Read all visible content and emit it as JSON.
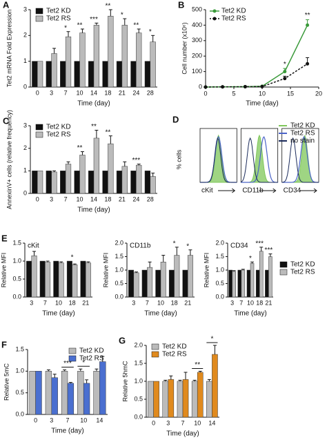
{
  "chart_data": [
    {
      "type": "bar",
      "panel": "A",
      "ylabel": "Tet2 mRNA Fold Expression",
      "xlabel": "Time (day)",
      "categories": [
        "0",
        "3",
        "7",
        "10",
        "14",
        "18",
        "21",
        "24",
        "28"
      ],
      "series": [
        {
          "name": "Tet2 KD",
          "color": "#111111",
          "values": [
            1,
            1,
            1,
            1,
            1,
            1,
            1,
            1,
            1
          ],
          "errors": [
            0,
            0,
            0,
            0,
            0,
            0,
            0,
            0,
            0
          ]
        },
        {
          "name": "Tet2 RS",
          "color": "#bbbbbb",
          "values": [
            1,
            1.3,
            1.95,
            2.1,
            2.4,
            2.75,
            2.4,
            2.1,
            1.75
          ],
          "errors": [
            0,
            0.2,
            0.2,
            0.15,
            0.08,
            0.25,
            0.25,
            0.15,
            0.25
          ]
        }
      ],
      "significance": [
        null,
        null,
        "*",
        "**",
        "***",
        "**",
        "*",
        "**",
        "*"
      ],
      "ylim": [
        0,
        3
      ],
      "yticks": [
        0,
        1,
        2,
        3
      ],
      "legend": "upper left"
    },
    {
      "type": "line",
      "panel": "B",
      "ylabel": "Cell number (x10⁶)",
      "xlabel": "Time (day)",
      "x": [
        0,
        3,
        7,
        10,
        14,
        18
      ],
      "series": [
        {
          "name": "Tet2 KD",
          "color": "#3a9a3a",
          "dash": false,
          "values": [
            0,
            1,
            2,
            5,
            100,
            400
          ],
          "errors": [
            0,
            1,
            2,
            3,
            20,
            35
          ]
        },
        {
          "name": "Tet2 RS",
          "color": "#111111",
          "dash": true,
          "values": [
            0,
            1,
            2,
            3,
            55,
            150
          ],
          "errors": [
            0,
            1,
            1,
            2,
            15,
            40
          ]
        }
      ],
      "significance": [
        null,
        null,
        null,
        null,
        "*",
        "**"
      ],
      "xlim": [
        0,
        20
      ],
      "xticks": [
        0,
        5,
        10,
        15,
        20
      ],
      "ylim": [
        0,
        500
      ],
      "yticks": [
        0,
        100,
        200,
        300,
        400,
        500
      ],
      "legend": "upper left"
    },
    {
      "type": "bar",
      "panel": "C",
      "ylabel": "AnnexinV+ cells (relative frequency)",
      "xlabel": "Time (day)",
      "categories": [
        "0",
        "3",
        "7",
        "10",
        "14",
        "18",
        "21",
        "24",
        "28"
      ],
      "series": [
        {
          "name": "Tet2 KD",
          "color": "#111111",
          "values": [
            1,
            1,
            1,
            1,
            1,
            1,
            1,
            1,
            1
          ],
          "errors": [
            0,
            0,
            0,
            0,
            0,
            0,
            0,
            0,
            0
          ]
        },
        {
          "name": "Tet2 RS",
          "color": "#bbbbbb",
          "values": [
            1,
            0.95,
            1.3,
            1.7,
            2.45,
            2.2,
            1.2,
            1.25,
            0.75
          ],
          "errors": [
            0,
            0.05,
            0.1,
            0.15,
            0.35,
            0.35,
            0.2,
            0.05,
            0.15
          ]
        }
      ],
      "significance": [
        null,
        null,
        null,
        "**",
        "**",
        "**",
        null,
        "***",
        null
      ],
      "ylim": [
        0,
        3
      ],
      "yticks": [
        0,
        1,
        2,
        3
      ],
      "legend": "upper left"
    },
    {
      "type": "flow",
      "panel": "D",
      "ylabel": "% cells",
      "categories": [
        "cKit",
        "CD11b",
        "CD34"
      ],
      "series": [
        {
          "name": "Tet2 KD",
          "color": "#7fc75a"
        },
        {
          "name": "Tet2 RS",
          "color": "#4a63c8"
        },
        {
          "name": "no stain",
          "color": "#1a2a5a"
        }
      ],
      "legend": "upper right"
    },
    {
      "type": "bar",
      "panel": "E",
      "title": "cKit",
      "ylabel": "Relative MFI",
      "xlabel": "Time (day)",
      "categories": [
        "3",
        "7",
        "10",
        "18",
        "21"
      ],
      "series": [
        {
          "name": "Tet2 KD",
          "color": "#111111",
          "values": [
            1,
            1,
            1,
            1,
            1
          ],
          "errors": [
            0,
            0,
            0,
            0,
            0
          ]
        },
        {
          "name": "Tet2 RS",
          "color": "#bbbbbb",
          "values": [
            1.15,
            0.97,
            0.95,
            0.9,
            0.95
          ],
          "errors": [
            0.12,
            0.03,
            0.03,
            0.02,
            0.03
          ]
        }
      ],
      "significance": [
        null,
        null,
        null,
        "*",
        null
      ],
      "ylim": [
        0,
        1.5
      ],
      "yticks": [
        {
          "value": 0,
          "label": "0.0"
        },
        0.5,
        {
          "value": 1,
          "label": "1.0"
        },
        1.5
      ]
    },
    {
      "type": "bar",
      "title": "CD11b",
      "ylabel": "Relative MFI",
      "xlabel": "Time (day)",
      "categories": [
        "3",
        "7",
        "10",
        "18",
        "21"
      ],
      "series": [
        {
          "name": "Tet2 KD",
          "color": "#111111",
          "values": [
            1,
            1,
            1,
            1,
            1
          ],
          "errors": [
            0,
            0,
            0,
            0,
            0
          ]
        },
        {
          "name": "Tet2 RS",
          "color": "#bbbbbb",
          "values": [
            0.9,
            1.1,
            1.3,
            1.55,
            1.55
          ],
          "errors": [
            0.03,
            0.2,
            0.25,
            0.3,
            0.2
          ]
        }
      ],
      "significance": [
        null,
        null,
        null,
        "*",
        "*"
      ],
      "ylim": [
        0,
        2
      ],
      "yticks": [
        {
          "value": 0,
          "label": "0.0"
        },
        0.5,
        {
          "value": 1,
          "label": "1.0"
        },
        1.5,
        {
          "value": 2,
          "label": "2.0"
        }
      ]
    },
    {
      "type": "bar",
      "title": "CD34",
      "ylabel": "Relative MFI",
      "xlabel": "Time (day)",
      "categories": [
        "3",
        "7",
        "10",
        "18",
        "21"
      ],
      "series": [
        {
          "name": "Tet2 KD",
          "color": "#111111",
          "values": [
            1,
            1,
            1,
            1,
            1
          ],
          "errors": [
            0,
            0,
            0,
            0,
            0
          ]
        },
        {
          "name": "Tet2 RS",
          "color": "#bbbbbb",
          "values": [
            0.95,
            1.0,
            1.25,
            1.7,
            1.5
          ],
          "errors": [
            0.03,
            0.03,
            0.05,
            0.15,
            0.1
          ]
        }
      ],
      "significance": [
        null,
        null,
        "*",
        "***",
        "***"
      ],
      "ylim": [
        0,
        2
      ],
      "yticks": [
        {
          "value": 0,
          "label": "0.0"
        },
        0.5,
        {
          "value": 1,
          "label": "1.0"
        },
        1.5,
        {
          "value": 2,
          "label": "2.0"
        }
      ],
      "legend": "right"
    },
    {
      "type": "bar",
      "panel": "F",
      "ylabel": "Relative 5mC",
      "xlabel": "Time (day)",
      "categories": [
        "0",
        "3",
        "7",
        "10",
        "14"
      ],
      "series": [
        {
          "name": "Tet2 KD",
          "color": "#bbbbbb",
          "values": [
            1,
            1,
            1,
            1,
            1
          ],
          "errors": [
            0,
            0.03,
            0.03,
            0.05,
            0.05
          ]
        },
        {
          "name": "Tet2 RS",
          "color": "#4a6fd0",
          "values": [
            1,
            0.85,
            0.72,
            0.72,
            1.22
          ],
          "errors": [
            0,
            0.08,
            0.02,
            0.08,
            0.12
          ]
        }
      ],
      "significance": [
        null,
        null,
        "***",
        "*",
        null
      ],
      "significance_style": "bracket",
      "ylim": [
        0,
        1.5
      ],
      "yticks": [
        {
          "value": 0,
          "label": "0.0"
        },
        0.5,
        {
          "value": 1,
          "label": "1.0"
        },
        1.5
      ],
      "legend": "upper right"
    },
    {
      "type": "bar",
      "panel": "G",
      "ylabel": "Relative 5hmC",
      "xlabel": "Time (day)",
      "categories": [
        "0",
        "3",
        "7",
        "10",
        "14"
      ],
      "series": [
        {
          "name": "Tet2 KD",
          "color": "#bbbbbb",
          "values": [
            1,
            1,
            1,
            1,
            1
          ],
          "errors": [
            0,
            0.03,
            0.03,
            0.03,
            0.05
          ]
        },
        {
          "name": "Tet2 RS",
          "color": "#e08a1e",
          "values": [
            1,
            1.05,
            1.05,
            1.25,
            1.75
          ],
          "errors": [
            0,
            0.1,
            0.2,
            0.03,
            0.25
          ]
        }
      ],
      "significance": [
        null,
        null,
        null,
        "**",
        "*"
      ],
      "significance_style": "bracket",
      "ylim": [
        0,
        2
      ],
      "yticks": [
        {
          "value": 0,
          "label": "0.0"
        },
        0.5,
        {
          "value": 1,
          "label": "1.0"
        },
        1.5,
        {
          "value": 2,
          "label": "2.0"
        }
      ],
      "legend": "upper left"
    }
  ]
}
